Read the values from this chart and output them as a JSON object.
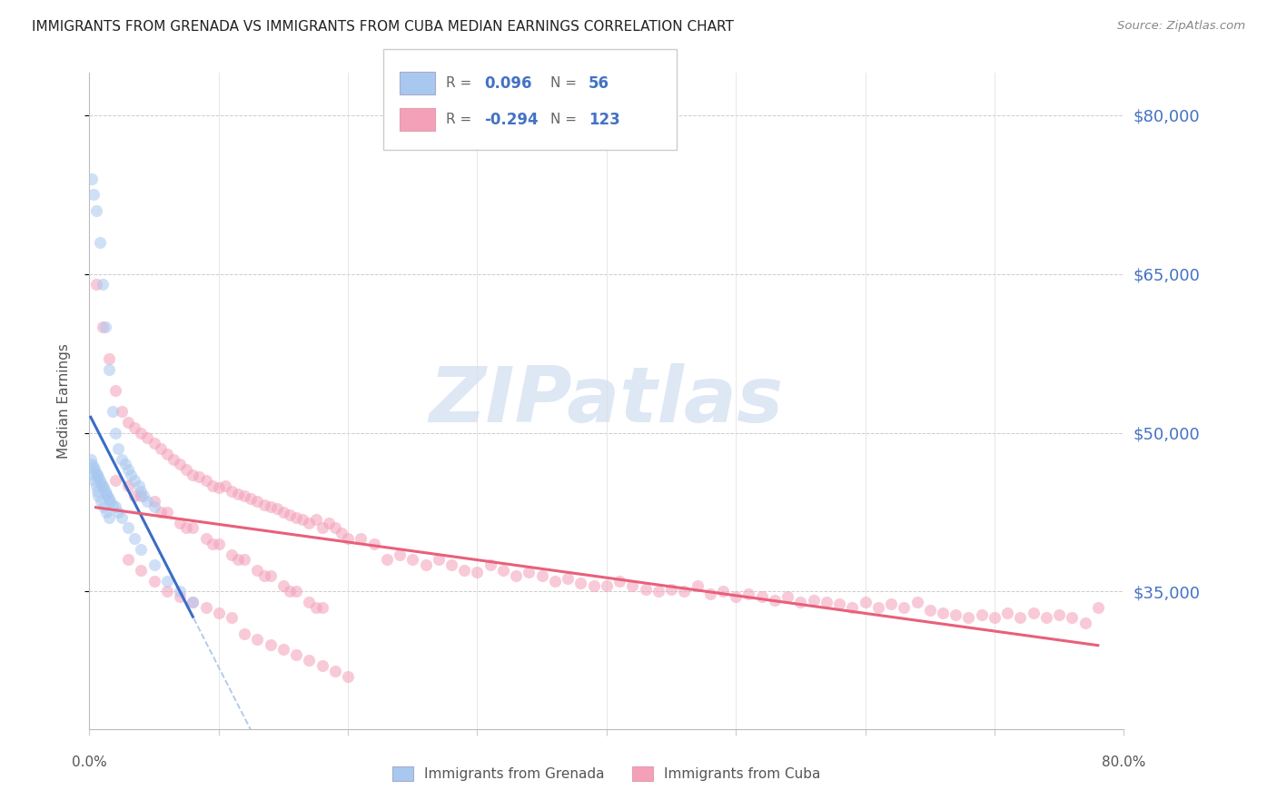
{
  "title": "IMMIGRANTS FROM GRENADA VS IMMIGRANTS FROM CUBA MEDIAN EARNINGS CORRELATION CHART",
  "source": "Source: ZipAtlas.com",
  "ylabel": "Median Earnings",
  "yticks": [
    35000,
    50000,
    65000,
    80000
  ],
  "ytick_labels": [
    "$35,000",
    "$50,000",
    "$65,000",
    "$80,000"
  ],
  "xlim": [
    0.0,
    80.0
  ],
  "ylim": [
    22000,
    84000
  ],
  "grenada_R": 0.096,
  "grenada_N": 56,
  "cuba_R": -0.294,
  "cuba_N": 123,
  "grenada_color": "#a8c8f0",
  "cuba_color": "#f4a0b8",
  "grenada_line_color": "#3a6cc8",
  "cuba_line_color": "#e8607a",
  "trend_line_color": "#b0c8e8",
  "background_color": "#ffffff",
  "watermark_color": "#c8d8ee",
  "right_label_color": "#4472c4",
  "scatter_alpha": 0.55,
  "scatter_size": 90,
  "grenada_scatter_x": [
    0.2,
    0.3,
    0.5,
    0.8,
    1.0,
    1.2,
    1.5,
    1.8,
    2.0,
    2.2,
    2.5,
    2.8,
    3.0,
    3.2,
    3.5,
    3.8,
    4.0,
    4.2,
    4.5,
    5.0,
    0.1,
    0.2,
    0.3,
    0.4,
    0.5,
    0.6,
    0.7,
    0.8,
    0.9,
    1.0,
    1.1,
    1.2,
    1.3,
    1.4,
    1.5,
    1.6,
    1.8,
    2.0,
    2.2,
    2.5,
    3.0,
    3.5,
    4.0,
    5.0,
    6.0,
    7.0,
    8.0,
    0.3,
    0.4,
    0.5,
    0.6,
    0.7,
    0.9,
    1.1,
    1.3,
    1.5
  ],
  "grenada_scatter_y": [
    74000,
    72500,
    71000,
    68000,
    64000,
    60000,
    56000,
    52000,
    50000,
    48500,
    47500,
    47000,
    46500,
    46000,
    45500,
    45000,
    44500,
    44000,
    43500,
    43000,
    47500,
    47000,
    46800,
    46500,
    46200,
    46000,
    45800,
    45500,
    45200,
    45000,
    44800,
    44500,
    44200,
    44000,
    43800,
    43500,
    43200,
    43000,
    42500,
    42000,
    41000,
    40000,
    39000,
    37500,
    36000,
    35000,
    34000,
    46000,
    45500,
    45000,
    44500,
    44000,
    43500,
    43000,
    42500,
    42000
  ],
  "cuba_scatter_x": [
    0.5,
    1.0,
    1.5,
    2.0,
    2.5,
    3.0,
    3.5,
    4.0,
    4.5,
    5.0,
    5.5,
    6.0,
    6.5,
    7.0,
    7.5,
    8.0,
    8.5,
    9.0,
    9.5,
    10.0,
    10.5,
    11.0,
    11.5,
    12.0,
    12.5,
    13.0,
    13.5,
    14.0,
    14.5,
    15.0,
    15.5,
    16.0,
    16.5,
    17.0,
    17.5,
    18.0,
    18.5,
    19.0,
    19.5,
    20.0,
    21.0,
    22.0,
    23.0,
    24.0,
    25.0,
    26.0,
    27.0,
    28.0,
    29.0,
    30.0,
    31.0,
    32.0,
    33.0,
    34.0,
    35.0,
    36.0,
    37.0,
    38.0,
    39.0,
    40.0,
    41.0,
    42.0,
    43.0,
    44.0,
    45.0,
    46.0,
    47.0,
    48.0,
    49.0,
    50.0,
    51.0,
    52.0,
    53.0,
    54.0,
    55.0,
    56.0,
    57.0,
    58.0,
    59.0,
    60.0,
    61.0,
    62.0,
    63.0,
    64.0,
    65.0,
    66.0,
    67.0,
    68.0,
    69.0,
    70.0,
    71.0,
    72.0,
    73.0,
    74.0,
    75.0,
    76.0,
    77.0,
    78.0,
    3.0,
    5.0,
    7.0,
    9.0,
    11.0,
    13.0,
    15.0,
    17.0,
    3.5,
    5.5,
    7.5,
    9.5,
    11.5,
    13.5,
    15.5,
    17.5,
    2.0,
    4.0,
    6.0,
    8.0,
    10.0,
    12.0,
    14.0,
    16.0,
    18.0
  ],
  "cuba_scatter_y": [
    64000,
    60000,
    57000,
    54000,
    52000,
    51000,
    50500,
    50000,
    49500,
    49000,
    48500,
    48000,
    47500,
    47000,
    46500,
    46000,
    45800,
    45500,
    45000,
    44800,
    45000,
    44500,
    44200,
    44000,
    43800,
    43500,
    43200,
    43000,
    42800,
    42500,
    42200,
    42000,
    41800,
    41500,
    41800,
    41000,
    41500,
    41000,
    40500,
    40000,
    40000,
    39500,
    38000,
    38500,
    38000,
    37500,
    38000,
    37500,
    37000,
    36800,
    37500,
    37000,
    36500,
    36800,
    36500,
    36000,
    36200,
    35800,
    35500,
    35500,
    36000,
    35500,
    35200,
    35000,
    35200,
    35000,
    35500,
    34800,
    35000,
    34500,
    34800,
    34500,
    34200,
    34500,
    34000,
    34200,
    34000,
    33800,
    33500,
    34000,
    33500,
    33800,
    33500,
    34000,
    33200,
    33000,
    32800,
    32500,
    32800,
    32500,
    33000,
    32500,
    33000,
    32500,
    32800,
    32500,
    32000,
    33500,
    45000,
    43500,
    41500,
    40000,
    38500,
    37000,
    35500,
    34000,
    44000,
    42500,
    41000,
    39500,
    38000,
    36500,
    35000,
    33500,
    45500,
    44000,
    42500,
    41000,
    39500,
    38000,
    36500,
    35000,
    33500
  ],
  "cuba_low_x": [
    3.0,
    4.0,
    5.0,
    6.0,
    7.0,
    8.0,
    9.0,
    10.0,
    11.0,
    12.0,
    13.0,
    14.0,
    15.0,
    16.0,
    17.0,
    18.0,
    19.0,
    20.0
  ],
  "cuba_low_y": [
    38000,
    37000,
    36000,
    35000,
    34500,
    34000,
    33500,
    33000,
    32500,
    31000,
    30500,
    30000,
    29500,
    29000,
    28500,
    28000,
    27500,
    27000
  ]
}
